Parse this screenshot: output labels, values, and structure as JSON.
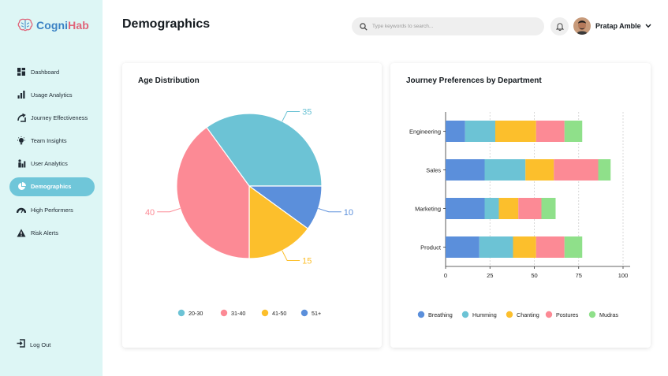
{
  "app": {
    "logo_prefix": "Cogni",
    "logo_suffix": "Hab"
  },
  "sidebar": {
    "items": [
      {
        "label": "Dashboard",
        "icon": "dashboard-icon"
      },
      {
        "label": "Usage Analytics",
        "icon": "bar-chart-icon"
      },
      {
        "label": "Journey Effectiveness",
        "icon": "journey-icon"
      },
      {
        "label": "Team Insights",
        "icon": "lightbulb-icon"
      },
      {
        "label": "User Analytics",
        "icon": "user-chart-icon"
      },
      {
        "label": "Demographics",
        "icon": "pie-chart-icon",
        "active": true
      },
      {
        "label": "High Performers",
        "icon": "gauge-icon"
      },
      {
        "label": "Risk Alerts",
        "icon": "warning-icon"
      }
    ],
    "logout_label": "Log Out"
  },
  "header": {
    "title": "Demographics",
    "search_placeholder": "Type keywords to search...",
    "user_name": "Pratap Amble"
  },
  "colors": {
    "accent": "#6fc6d9",
    "sidebar_bg": "#ddf6f5",
    "blue": "#5b8fdb",
    "teal": "#6cc3d5",
    "yellow": "#fcbf2c",
    "pink": "#fc8a95",
    "green": "#8fe08a"
  },
  "chart_data": [
    {
      "type": "pie",
      "title": "Age Distribution",
      "categories": [
        "20-30",
        "31-40",
        "41-50",
        "51+"
      ],
      "values": [
        35,
        40,
        15,
        10
      ],
      "colors": [
        "#6cc3d5",
        "#fc8a95",
        "#fcbf2c",
        "#5b8fdb"
      ],
      "legend": "bottom"
    },
    {
      "type": "bar",
      "orientation": "horizontal",
      "stacked": true,
      "title": "Journey Preferences by Department",
      "categories": [
        "Engineering",
        "Sales",
        "Marketing",
        "Product"
      ],
      "series": [
        {
          "name": "Breathing",
          "color": "#5b8fdb",
          "values": [
            11,
            22,
            22,
            19
          ]
        },
        {
          "name": "Humming",
          "color": "#6cc3d5",
          "values": [
            17,
            23,
            8,
            19
          ]
        },
        {
          "name": "Chanting",
          "color": "#fcbf2c",
          "values": [
            23,
            16,
            11,
            13
          ]
        },
        {
          "name": "Postures",
          "color": "#fc8a95",
          "values": [
            16,
            25,
            13,
            16
          ]
        },
        {
          "name": "Mudras",
          "color": "#8fe08a",
          "values": [
            10,
            7,
            8,
            10
          ]
        }
      ],
      "xticks": [
        0,
        25,
        50,
        75,
        100
      ],
      "xlim": [
        0,
        104
      ],
      "grid": true,
      "legend": "bottom"
    }
  ]
}
